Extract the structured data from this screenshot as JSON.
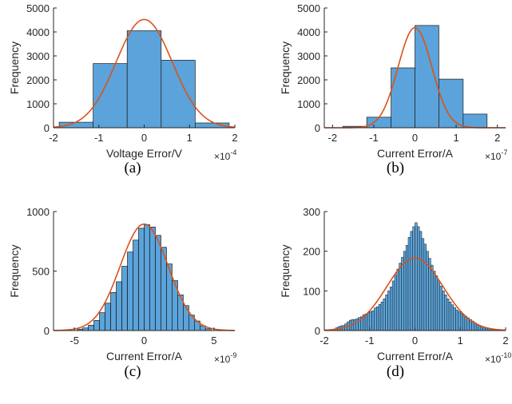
{
  "colors": {
    "bar": "#5BA3DA",
    "bar_edge": "#1a1a1a",
    "curve": "#D95319",
    "axis": "#262626"
  },
  "chart_data": [
    {
      "type": "bar",
      "caption": "(a)",
      "xlabel": "Voltage Error/V",
      "ylabel": "Frequency",
      "x_exponent": {
        "base": "×10",
        "power": "-4"
      },
      "xlim": [
        -2,
        2
      ],
      "ylim": [
        0,
        5000
      ],
      "xticks": [
        -2,
        -1,
        0,
        1,
        2
      ],
      "xtick_labels": [
        "-2",
        "-1",
        "0",
        "1",
        "2"
      ],
      "yticks": [
        0,
        1000,
        2000,
        3000,
        4000,
        5000
      ],
      "ytick_labels": [
        "0",
        "1000",
        "2000",
        "3000",
        "4000",
        "5000"
      ],
      "bin_edges": [
        -1.875,
        -1.125,
        -0.375,
        0.375,
        1.125,
        1.875
      ],
      "values": [
        230,
        2680,
        4050,
        2820,
        200
      ],
      "fit": {
        "mean": 0,
        "sigma": 0.62,
        "peak": 4520
      }
    },
    {
      "type": "bar",
      "caption": "(b)",
      "xlabel": "Current Error/A",
      "ylabel": "Frequency",
      "x_exponent": {
        "base": "×10",
        "power": "-7"
      },
      "xlim": [
        -2.2,
        2.2
      ],
      "ylim": [
        0,
        5000
      ],
      "xticks": [
        -2,
        -1,
        0,
        1,
        2
      ],
      "xtick_labels": [
        "-2",
        "-1",
        "0",
        "1",
        "2"
      ],
      "yticks": [
        0,
        1000,
        2000,
        3000,
        4000,
        5000
      ],
      "ytick_labels": [
        "0",
        "1000",
        "2000",
        "3000",
        "4000",
        "5000"
      ],
      "bin_edges": [
        -1.75,
        -1.17,
        -0.58,
        0.0,
        0.58,
        1.17,
        1.75
      ],
      "values": [
        60,
        440,
        2500,
        4270,
        2030,
        570
      ],
      "fit": {
        "mean": 0,
        "sigma": 0.41,
        "peak": 4180
      }
    },
    {
      "type": "bar",
      "caption": "(c)",
      "xlabel": "Current Error/A",
      "ylabel": "Frequency",
      "x_exponent": {
        "base": "×10",
        "power": "-9"
      },
      "xlim": [
        -6.5,
        6.5
      ],
      "ylim": [
        0,
        1000
      ],
      "xticks": [
        -5,
        0,
        5
      ],
      "xtick_labels": [
        "-5",
        "0",
        "5"
      ],
      "yticks": [
        0,
        500,
        1000
      ],
      "ytick_labels": [
        "0",
        "500",
        "1000"
      ],
      "bin_edges": [
        -4.8,
        -4.4,
        -4.0,
        -3.6,
        -3.2,
        -2.8,
        -2.4,
        -2.0,
        -1.6,
        -1.2,
        -0.8,
        -0.4,
        0.0,
        0.4,
        0.8,
        1.2,
        1.6,
        2.0,
        2.4,
        2.8,
        3.2,
        3.6,
        4.0,
        4.4,
        4.8
      ],
      "values": [
        12,
        22,
        45,
        85,
        150,
        230,
        320,
        410,
        540,
        660,
        760,
        860,
        890,
        870,
        800,
        700,
        560,
        420,
        300,
        210,
        130,
        80,
        40,
        15
      ],
      "fit": {
        "mean": 0,
        "sigma": 1.72,
        "peak": 895
      }
    },
    {
      "type": "bar",
      "caption": "(d)",
      "xlabel": "Current Error/A",
      "ylabel": "Frequency",
      "x_exponent": {
        "base": "×10",
        "power": "-10"
      },
      "xlim": [
        -2,
        2
      ],
      "ylim": [
        0,
        300
      ],
      "xticks": [
        -2,
        -1,
        0,
        1,
        2
      ],
      "xtick_labels": [
        "-2",
        "-1",
        "0",
        "1",
        "2"
      ],
      "yticks": [
        0,
        100,
        200,
        300
      ],
      "ytick_labels": [
        "0",
        "100",
        "200",
        "300"
      ],
      "bin_edges": [
        -1.8,
        -1.75,
        -1.7,
        -1.65,
        -1.6,
        -1.55,
        -1.5,
        -1.45,
        -1.4,
        -1.35,
        -1.3,
        -1.25,
        -1.2,
        -1.15,
        -1.1,
        -1.05,
        -1.0,
        -0.95,
        -0.9,
        -0.85,
        -0.8,
        -0.75,
        -0.7,
        -0.65,
        -0.6,
        -0.55,
        -0.5,
        -0.45,
        -0.4,
        -0.35,
        -0.3,
        -0.25,
        -0.2,
        -0.15,
        -0.1,
        -0.05,
        0.0,
        0.05,
        0.1,
        0.15,
        0.2,
        0.25,
        0.3,
        0.35,
        0.4,
        0.45,
        0.5,
        0.55,
        0.6,
        0.65,
        0.7,
        0.75,
        0.8,
        0.85,
        0.9,
        0.95,
        1.0,
        1.05,
        1.1,
        1.15,
        1.2,
        1.25,
        1.3,
        1.35,
        1.4,
        1.45,
        1.5,
        1.55,
        1.6,
        1.65,
        1.7,
        1.75,
        1.8
      ],
      "values": [
        4,
        7,
        10,
        12,
        13,
        17,
        22,
        26,
        28,
        28,
        30,
        33,
        35,
        40,
        42,
        45,
        48,
        50,
        57,
        60,
        66,
        72,
        80,
        90,
        100,
        110,
        125,
        140,
        155,
        170,
        185,
        200,
        215,
        235,
        250,
        262,
        272,
        262,
        250,
        232,
        218,
        200,
        182,
        165,
        150,
        138,
        125,
        112,
        100,
        90,
        80,
        72,
        65,
        58,
        52,
        48,
        44,
        40,
        36,
        32,
        28,
        24,
        20,
        16,
        13,
        10,
        8,
        6,
        5,
        4,
        3,
        2
      ],
      "fit": {
        "mean": 0,
        "sigma": 0.62,
        "peak": 183
      }
    }
  ]
}
